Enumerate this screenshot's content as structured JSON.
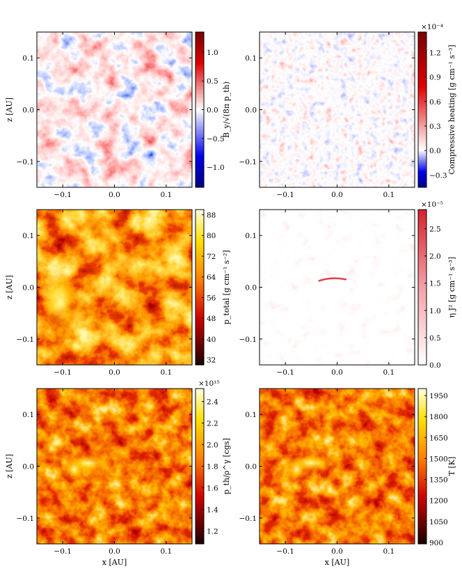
{
  "chart_data": [
    {
      "type": "heatmap",
      "position": "top-left",
      "colormap": "bwr",
      "xlim": [
        -0.15,
        0.15
      ],
      "ylim": [
        -0.15,
        0.15
      ],
      "xticks": [
        "−0.1",
        "0.0",
        "0.1"
      ],
      "yticks": [
        "0.1",
        "0.0",
        "−0.1"
      ],
      "xlabel": "",
      "ylabel": "z [AU]",
      "colorbar": {
        "label": "B_y/√(8π p_th)",
        "ticks": [
          "1.0",
          "0.5",
          "0.0",
          "−0.5",
          "−1.0"
        ],
        "range": [
          -1.35,
          1.35
        ],
        "multiplier": ""
      }
    },
    {
      "type": "heatmap",
      "position": "top-right",
      "colormap": "bwr",
      "xlim": [
        -0.15,
        0.15
      ],
      "ylim": [
        -0.15,
        0.15
      ],
      "xticks": [
        "−0.1",
        "0.0",
        "0.1"
      ],
      "yticks": [
        "0.1",
        "0.0",
        "−0.1"
      ],
      "xlabel": "",
      "ylabel": "",
      "colorbar": {
        "label": "Compressive heating [g cm⁻¹ s⁻³]",
        "ticks": [
          "1.2",
          "0.9",
          "0.6",
          "0.3",
          "0.0",
          "−0.3"
        ],
        "range": [
          -0.45,
          1.45
        ],
        "multiplier": "×10⁻⁴"
      }
    },
    {
      "type": "heatmap",
      "position": "middle-left",
      "colormap": "hot",
      "xlim": [
        -0.15,
        0.15
      ],
      "ylim": [
        -0.15,
        0.15
      ],
      "xticks": [
        "−0.1",
        "0.0",
        "0.1"
      ],
      "yticks": [
        "0.1",
        "0.0",
        "−0.1"
      ],
      "xlabel": "",
      "ylabel": "z [AU]",
      "colorbar": {
        "label": "p_total [g cm⁻¹ s⁻²]",
        "ticks": [
          "88",
          "80",
          "72",
          "64",
          "56",
          "48",
          "40",
          "32"
        ],
        "range": [
          30,
          90
        ],
        "multiplier": ""
      }
    },
    {
      "type": "heatmap",
      "position": "middle-right",
      "colormap": "reds",
      "xlim": [
        -0.15,
        0.15
      ],
      "ylim": [
        -0.15,
        0.15
      ],
      "xticks": [
        "−0.1",
        "0.0",
        "0.1"
      ],
      "yticks": [
        "0.1",
        "0.0",
        "−0.1"
      ],
      "xlabel": "",
      "ylabel": "",
      "colorbar": {
        "label": "η J² [g cm⁻¹ s⁻³]",
        "ticks": [
          "2.5",
          "2.0",
          "1.5",
          "1.0",
          "0.5",
          "0.0"
        ],
        "range": [
          0,
          2.85
        ],
        "multiplier": "×10⁻⁵"
      }
    },
    {
      "type": "heatmap",
      "position": "bottom-left",
      "colormap": "hot",
      "xlim": [
        -0.15,
        0.15
      ],
      "ylim": [
        -0.15,
        0.15
      ],
      "xticks": [
        "−0.1",
        "0.0",
        "0.1"
      ],
      "yticks": [
        "0.1",
        "0.0",
        "−0.1"
      ],
      "xlabel": "x [AU]",
      "ylabel": "z [AU]",
      "colorbar": {
        "label": "p_th/ρ^γ [cgs]",
        "ticks": [
          "2.4",
          "2.2",
          "2.0",
          "1.8",
          "1.6",
          "1.4",
          "1.2"
        ],
        "range": [
          1.08,
          2.52
        ],
        "multiplier": "×10¹⁵"
      }
    },
    {
      "type": "heatmap",
      "position": "bottom-right",
      "colormap": "hot",
      "xlim": [
        -0.15,
        0.15
      ],
      "ylim": [
        -0.15,
        0.15
      ],
      "xticks": [
        "−0.1",
        "0.0",
        "0.1"
      ],
      "yticks": [
        "0.1",
        "0.0",
        "−0.1"
      ],
      "xlabel": "x [AU]",
      "ylabel": "",
      "colorbar": {
        "label": "T [K]",
        "ticks": [
          "1950",
          "1800",
          "1650",
          "1500",
          "1350",
          "1200",
          "1050",
          "900"
        ],
        "range": [
          890,
          2000
        ],
        "multiplier": ""
      }
    }
  ]
}
